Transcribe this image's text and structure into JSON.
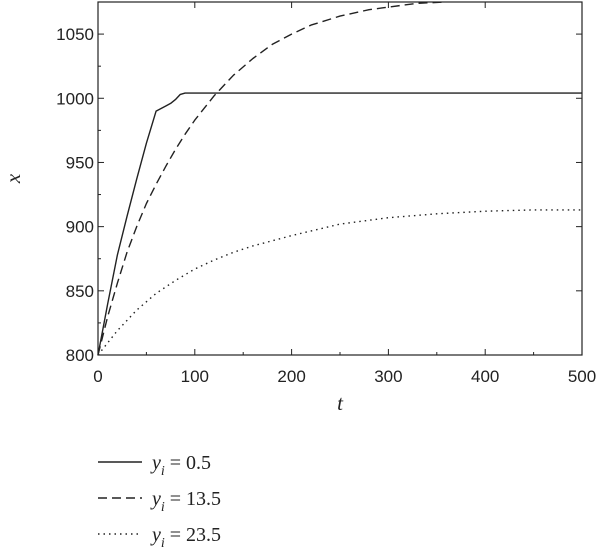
{
  "chart_data": {
    "type": "line",
    "xlabel": "t",
    "ylabel": "x",
    "xlim": [
      0,
      500
    ],
    "ylim": [
      800,
      1075
    ],
    "xticks": [
      0,
      100,
      200,
      300,
      400,
      500
    ],
    "yticks": [
      800,
      850,
      900,
      950,
      1000,
      1050
    ],
    "grid": false,
    "legend": "below",
    "series": [
      {
        "name": "y_i = 0.5",
        "legend_var": "y",
        "legend_sub": "i",
        "legend_rest": " = 0.5",
        "style": "solid",
        "x": [
          0,
          10,
          20,
          30,
          40,
          50,
          60,
          70,
          75,
          80,
          85,
          90,
          95,
          100,
          150,
          200,
          300,
          400,
          500
        ],
        "y": [
          800,
          840,
          878,
          908,
          937,
          965,
          990,
          994,
          996,
          999,
          1003,
          1004,
          1004,
          1004,
          1004,
          1004,
          1004,
          1004,
          1004
        ]
      },
      {
        "name": "y_i = 13.5",
        "legend_var": "y",
        "legend_sub": "i",
        "legend_rest": " = 13.5",
        "style": "dashed",
        "x": [
          0,
          10,
          20,
          30,
          40,
          50,
          60,
          70,
          80,
          90,
          100,
          120,
          140,
          160,
          180,
          200,
          220,
          250,
          280,
          300,
          330,
          360
        ],
        "y": [
          800,
          830,
          856,
          880,
          900,
          918,
          933,
          947,
          960,
          972,
          983,
          1002,
          1018,
          1031,
          1042,
          1050,
          1057,
          1064,
          1069,
          1071,
          1074,
          1075
        ]
      },
      {
        "name": "y_i = 23.5",
        "legend_var": "y",
        "legend_sub": "i",
        "legend_rest": " = 23.5",
        "style": "dotted",
        "x": [
          0,
          20,
          40,
          60,
          80,
          100,
          120,
          140,
          160,
          180,
          200,
          250,
          300,
          350,
          400,
          450,
          500
        ],
        "y": [
          800,
          819,
          835,
          848,
          858,
          867,
          874,
          880,
          885,
          889,
          893,
          902,
          907,
          910,
          912,
          913,
          913
        ]
      }
    ]
  }
}
